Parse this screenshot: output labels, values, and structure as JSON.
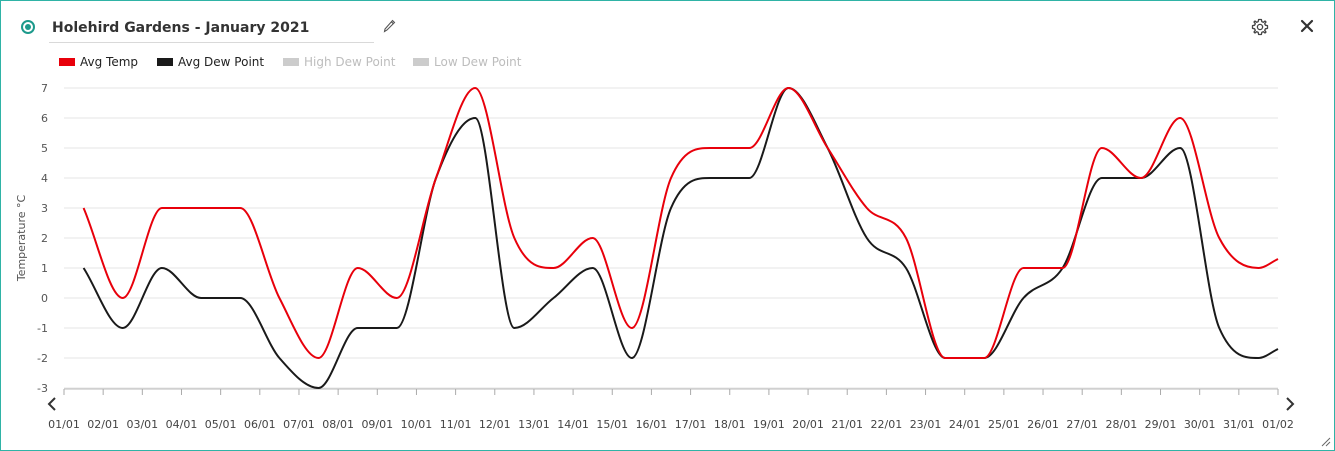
{
  "header": {
    "title": "Holehird Gardens - January 2021",
    "radio_icon": "radio-selected-icon",
    "edit_icon": "pencil-icon",
    "settings_icon": "gear-icon",
    "close_icon": "close-icon",
    "accent_color": "#1d9a8c"
  },
  "legend": [
    {
      "label": "Avg Temp",
      "color": "#e8000b",
      "active": true
    },
    {
      "label": "Avg Dew Point",
      "color": "#1a1a1a",
      "active": true
    },
    {
      "label": "High Dew Point",
      "color": "#cccccc",
      "active": false
    },
    {
      "label": "Low Dew Point",
      "color": "#cccccc",
      "active": false
    }
  ],
  "navigation": {
    "prev_icon": "chevron-left-icon",
    "next_icon": "chevron-right-icon",
    "resize_icon": "resize-handle-icon"
  },
  "chart_data": {
    "type": "line",
    "title": "",
    "xlabel": "",
    "ylabel": "Temperature °C",
    "ylim": [
      -3,
      7
    ],
    "yticks": [
      -3,
      -2,
      -1,
      0,
      1,
      2,
      3,
      4,
      5,
      6,
      7
    ],
    "grid": true,
    "legend_position": "top-left",
    "categories": [
      "01/01",
      "02/01",
      "03/01",
      "04/01",
      "05/01",
      "06/01",
      "07/01",
      "08/01",
      "09/01",
      "10/01",
      "11/01",
      "12/01",
      "13/01",
      "14/01",
      "15/01",
      "16/01",
      "17/01",
      "18/01",
      "19/01",
      "20/01",
      "21/01",
      "22/01",
      "23/01",
      "24/01",
      "25/01",
      "26/01",
      "27/01",
      "28/01",
      "29/01",
      "30/01",
      "31/01",
      "01/02"
    ],
    "series": [
      {
        "name": "Avg Temp",
        "color": "#e8000b",
        "x": [
          0.5,
          1.5,
          2.5,
          3.5,
          4.5,
          5.5,
          6.5,
          7.5,
          8.5,
          9.5,
          10.5,
          11.5,
          12.5,
          13.5,
          14.5,
          15.5,
          16.5,
          17.5,
          18.5,
          19.5,
          20.5,
          21.5,
          22.5,
          23.5,
          24.5,
          25.5,
          26.5,
          27.5,
          28.5,
          29.5,
          30.5,
          31.0
        ],
        "values": [
          3,
          0,
          3,
          3,
          3,
          0,
          -2,
          1,
          0,
          4,
          7,
          2,
          1,
          2,
          -1,
          4,
          5,
          5,
          7,
          5,
          3,
          2,
          -2,
          -2,
          1,
          1,
          5,
          4,
          6,
          2,
          1,
          1.3
        ]
      },
      {
        "name": "Avg Dew Point",
        "color": "#1a1a1a",
        "x": [
          0.5,
          1.5,
          2.5,
          3.5,
          4.5,
          5.5,
          6.5,
          7.5,
          8.5,
          9.5,
          10.5,
          11.5,
          12.5,
          13.5,
          14.5,
          15.5,
          16.5,
          17.5,
          18.5,
          19.5,
          20.5,
          21.5,
          22.5,
          23.5,
          24.5,
          25.5,
          26.5,
          27.5,
          28.5,
          29.5,
          30.5,
          31.0
        ],
        "values": [
          1,
          -1,
          1,
          0,
          0,
          -2,
          -3,
          -1,
          -1,
          4,
          6,
          -1,
          0,
          1,
          -2,
          3,
          4,
          4,
          7,
          5,
          2,
          1,
          -2,
          -2,
          0,
          1,
          4,
          4,
          5,
          -1,
          -2,
          -1.7
        ]
      }
    ]
  }
}
